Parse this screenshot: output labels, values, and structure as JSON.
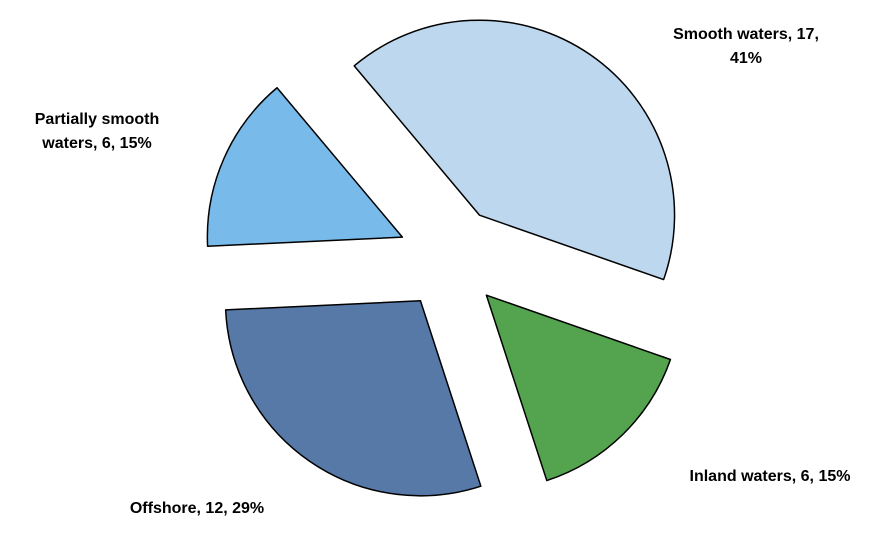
{
  "chart_data": {
    "type": "pie",
    "values": [
      17,
      6,
      12,
      6
    ],
    "value_labels": [
      "Smooth waters, 17, 41%",
      "Inland waters, 6, 15%",
      "Offshore, 12, 29%",
      "Partially smooth waters, 6, 15%"
    ],
    "colors": [
      "#bdd7ee",
      "#53a34f",
      "#5779a8",
      "#78bae9"
    ]
  }
}
